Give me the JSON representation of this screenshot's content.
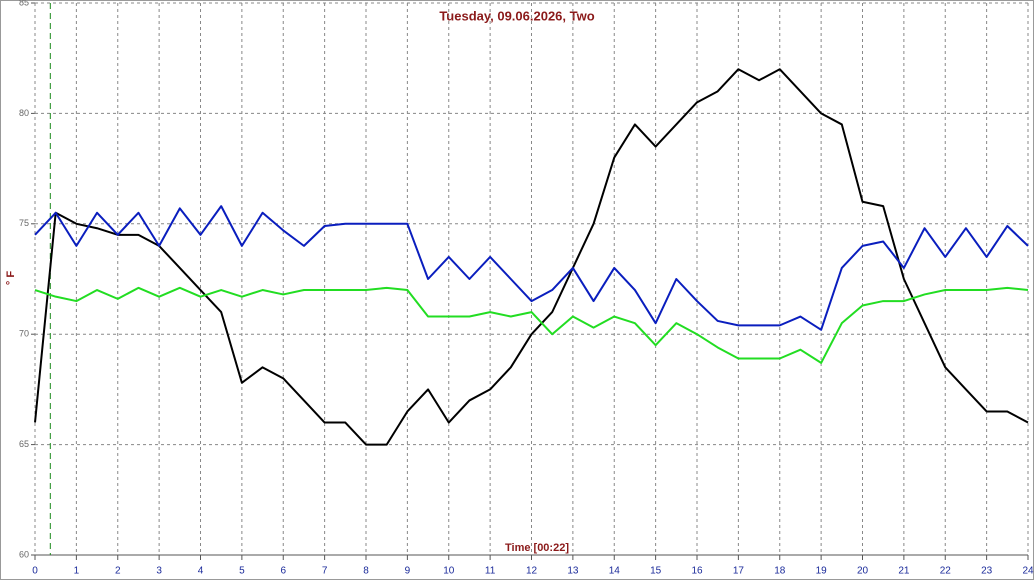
{
  "chart_data": {
    "type": "line",
    "title": "Tuesday, 09.06.2026, Two",
    "y_label": "° F",
    "x_label": "Time [00:22]",
    "cursor_x": 0.37,
    "x": [
      0,
      0.5,
      1,
      1.5,
      2,
      2.5,
      3,
      3.5,
      4,
      4.5,
      5,
      5.5,
      6,
      6.5,
      7,
      7.5,
      8,
      8.5,
      9,
      9.5,
      10,
      10.5,
      11,
      11.5,
      12,
      12.5,
      13,
      13.5,
      14,
      14.5,
      15,
      15.5,
      16,
      16.5,
      17,
      17.5,
      18,
      18.5,
      19,
      19.5,
      20,
      20.5,
      21,
      21.5,
      22,
      22.5,
      23,
      23.5,
      24
    ],
    "series": [
      {
        "color": "#000000",
        "values": [
          66,
          75.5,
          75,
          74.8,
          74.5,
          74.5,
          74,
          73,
          72,
          71,
          67.8,
          68.5,
          68,
          67,
          66,
          66,
          65,
          65,
          66.5,
          67.5,
          66,
          67,
          67.5,
          68.5,
          70,
          71,
          73,
          75,
          78,
          79.5,
          78.5,
          79.5,
          80.5,
          81,
          82,
          81.5,
          82,
          81,
          80,
          79.5,
          76,
          75.8,
          72.5,
          70.5,
          68.5,
          67.5,
          66.5,
          66.5,
          66
        ]
      },
      {
        "color": "#0a1ebe",
        "values": [
          74.5,
          75.5,
          74,
          75.5,
          74.5,
          75.5,
          74,
          75.7,
          74.5,
          75.8,
          74,
          75.5,
          74.7,
          74,
          74.9,
          75,
          75,
          75,
          75,
          72.5,
          73.5,
          72.5,
          73.5,
          72.5,
          71.5,
          72,
          73,
          71.5,
          73,
          72,
          70.5,
          72.5,
          71.5,
          70.6,
          70.4,
          70.4,
          70.4,
          70.8,
          70.2,
          73,
          74,
          74.2,
          73,
          74.8,
          73.5,
          74.8,
          73.5,
          74.9,
          74
        ]
      },
      {
        "color": "#22dd22",
        "values": [
          72,
          71.7,
          71.5,
          72,
          71.6,
          72.1,
          71.7,
          72.1,
          71.7,
          72,
          71.7,
          72,
          71.8,
          72,
          72,
          72,
          72,
          72.1,
          72,
          70.8,
          70.8,
          70.8,
          71,
          70.8,
          71,
          70,
          70.8,
          70.3,
          70.8,
          70.5,
          69.5,
          70.5,
          70,
          69.4,
          68.9,
          68.9,
          68.9,
          69.3,
          68.7,
          70.5,
          71.3,
          71.5,
          71.5,
          71.8,
          72,
          72,
          72,
          72.1,
          72
        ]
      }
    ],
    "xlim": [
      0,
      24
    ],
    "xticks": [
      0,
      1,
      2,
      3,
      4,
      5,
      6,
      7,
      8,
      9,
      10,
      11,
      12,
      13,
      14,
      15,
      16,
      17,
      18,
      19,
      20,
      21,
      22,
      23,
      24
    ],
    "ylim": [
      60,
      85
    ],
    "yticks": [
      60,
      65,
      70,
      75,
      80,
      85
    ],
    "grid": true
  }
}
